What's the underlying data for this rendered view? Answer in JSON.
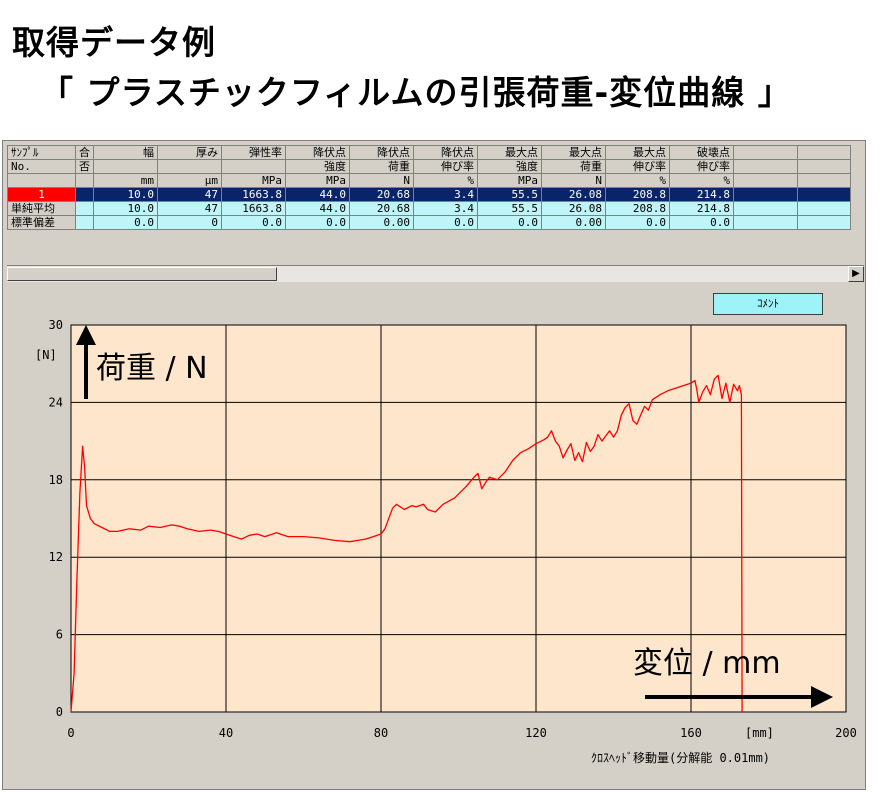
{
  "title_line1": "取得データ例",
  "title_line2": "「 プラスチックフィルムの引張荷重-変位曲線 」",
  "table": {
    "header_row1": [
      "ｻﾝﾌﾟﾙ",
      "合",
      "幅",
      "厚み",
      "弾性率",
      "降伏点",
      "降伏点",
      "降伏点",
      "最大点",
      "最大点",
      "最大点",
      "破壊点",
      "",
      ""
    ],
    "header_row2": [
      "No.",
      "否",
      "",
      "",
      "",
      "強度",
      "荷重",
      "伸び率",
      "強度",
      "荷重",
      "伸び率",
      "伸び率",
      "",
      ""
    ],
    "header_row3": [
      "",
      "",
      "mm",
      "μm",
      "MPa",
      "MPa",
      "N",
      "%",
      "MPa",
      "N",
      "%",
      "%",
      "",
      ""
    ],
    "rows": [
      {
        "cls": "sel",
        "cells": [
          "1",
          "",
          "10.0",
          "47",
          "1663.8",
          "44.0",
          "20.68",
          "3.4",
          "55.5",
          "26.08",
          "208.8",
          "214.8",
          "",
          ""
        ]
      },
      {
        "cls": "stat",
        "cells": [
          "単純平均",
          "",
          "10.0",
          "47",
          "1663.8",
          "44.0",
          "20.68",
          "3.4",
          "55.5",
          "26.08",
          "208.8",
          "214.8",
          "",
          ""
        ]
      },
      {
        "cls": "stat",
        "cells": [
          "標準偏差",
          "",
          "0.0",
          "0",
          "0.0",
          "0.0",
          "0.00",
          "0.0",
          "0.0",
          "0.00",
          "0.0",
          "0.0",
          "",
          ""
        ]
      }
    ]
  },
  "comment_button": "ｺﾒﾝﾄ",
  "annotations": {
    "load_label": "荷重 / N",
    "disp_label": "変位 / mm"
  },
  "chart_data": {
    "type": "line",
    "y_unit": "[N]",
    "x_unit": "[mm]",
    "xlabel": "ｸﾛｽﾍｯﾄﾞ移動量(分解能 0.01mm)",
    "xlim": [
      0,
      200
    ],
    "ylim": [
      0,
      30
    ],
    "x_ticks": [
      0,
      40,
      80,
      120,
      160,
      200
    ],
    "y_ticks": [
      0,
      6,
      12,
      18,
      24,
      30
    ],
    "grid": true,
    "background": "#fde6cc",
    "line_color": "#ff0000",
    "series": [
      {
        "x": [
          0,
          0.8,
          1.5,
          2.3,
          3.0,
          3.5,
          4.0,
          5.0,
          6.0,
          8.0,
          10,
          12,
          15,
          18,
          20,
          23,
          26,
          28,
          30,
          33,
          36,
          38,
          40,
          42,
          44,
          46,
          48,
          50,
          53,
          56,
          60,
          64,
          68,
          72,
          76,
          78,
          80,
          81,
          83,
          84,
          86,
          88,
          89,
          91,
          92,
          94,
          96,
          99,
          102,
          104,
          105,
          106,
          107,
          108,
          110,
          112,
          114,
          116,
          118,
          120,
          122,
          123,
          124,
          125,
          126,
          127,
          128,
          129,
          130,
          131,
          132,
          133,
          134,
          135,
          136,
          137,
          138,
          139,
          140,
          141,
          142,
          143,
          144,
          145,
          146,
          147,
          148,
          149,
          150,
          152,
          154,
          156,
          158,
          160,
          161,
          161.5,
          162,
          163,
          164,
          165,
          166,
          167,
          168,
          169,
          170,
          171,
          172,
          172.5,
          173,
          173.2
        ],
        "y": [
          0,
          3,
          10,
          17,
          20.6,
          19,
          16,
          15,
          14.6,
          14.3,
          14.0,
          14.0,
          14.2,
          14.1,
          14.4,
          14.3,
          14.5,
          14.4,
          14.2,
          14.0,
          14.1,
          14.0,
          13.8,
          13.6,
          13.4,
          13.7,
          13.8,
          13.6,
          13.9,
          13.6,
          13.6,
          13.5,
          13.3,
          13.2,
          13.4,
          13.6,
          13.8,
          14.2,
          15.8,
          16.1,
          15.7,
          16.0,
          15.9,
          16.1,
          15.7,
          15.5,
          16.1,
          16.6,
          17.5,
          18.2,
          18.5,
          17.3,
          17.8,
          18.2,
          18.0,
          18.6,
          19.5,
          20.1,
          20.4,
          20.8,
          21.1,
          21.3,
          21.8,
          21.0,
          20.6,
          19.7,
          20.3,
          20.8,
          19.5,
          20.1,
          19.4,
          20.9,
          20.2,
          20.6,
          21.5,
          21.0,
          21.4,
          21.8,
          21.3,
          21.8,
          23.0,
          23.6,
          23.9,
          22.6,
          22.3,
          23.0,
          23.7,
          23.4,
          24.2,
          24.6,
          24.9,
          25.1,
          25.3,
          25.5,
          25.7,
          25.0,
          24.0,
          24.8,
          25.3,
          24.6,
          25.8,
          26.1,
          24.3,
          25.5,
          24.0,
          25.4,
          24.9,
          25.3,
          24.6,
          0
        ]
      }
    ]
  }
}
